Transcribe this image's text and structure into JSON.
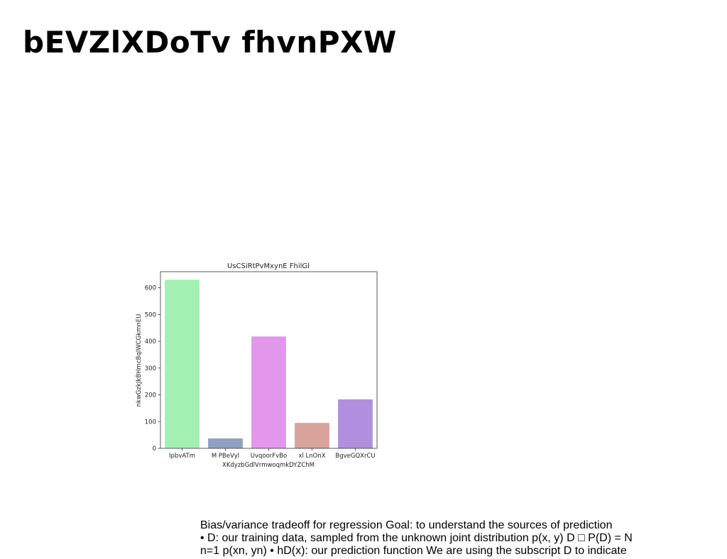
{
  "slide": {
    "title": "bEVZlXDoTv fhvnPXW"
  },
  "chart_data": {
    "type": "bar",
    "title": "UsCSiRtPvMxynE FhilGl",
    "xlabel": "XKdyzbGdlVrmwoqmkDYZChM",
    "ylabel": "nkwGzkJkBHmcBqIWCGkmnEU",
    "categories": [
      "IpbvATm",
      "M PBeVyl",
      "UvqoorFvBo",
      "xl LnOnX",
      "BgveGQXrCU"
    ],
    "values": [
      630,
      37,
      418,
      95,
      183
    ],
    "colors": [
      "#a3f0b3",
      "#8fa0c6",
      "#e297ed",
      "#d9a29a",
      "#b08fdf"
    ],
    "ylim": [
      0,
      660
    ],
    "yticks": [
      0,
      100,
      200,
      300,
      400,
      500,
      600
    ],
    "grid": false
  },
  "caption": {
    "lines": [
      "Bias/variance tradeoff for regression Goal: to understand the sources of prediction",
      "• D: our training data, sampled from the unknown joint distribution p(x, y) D □ P(D) = N",
      "n=1 p(xn, yn) • hD(x): our prediction function We are using the subscript D to indicate"
    ]
  }
}
